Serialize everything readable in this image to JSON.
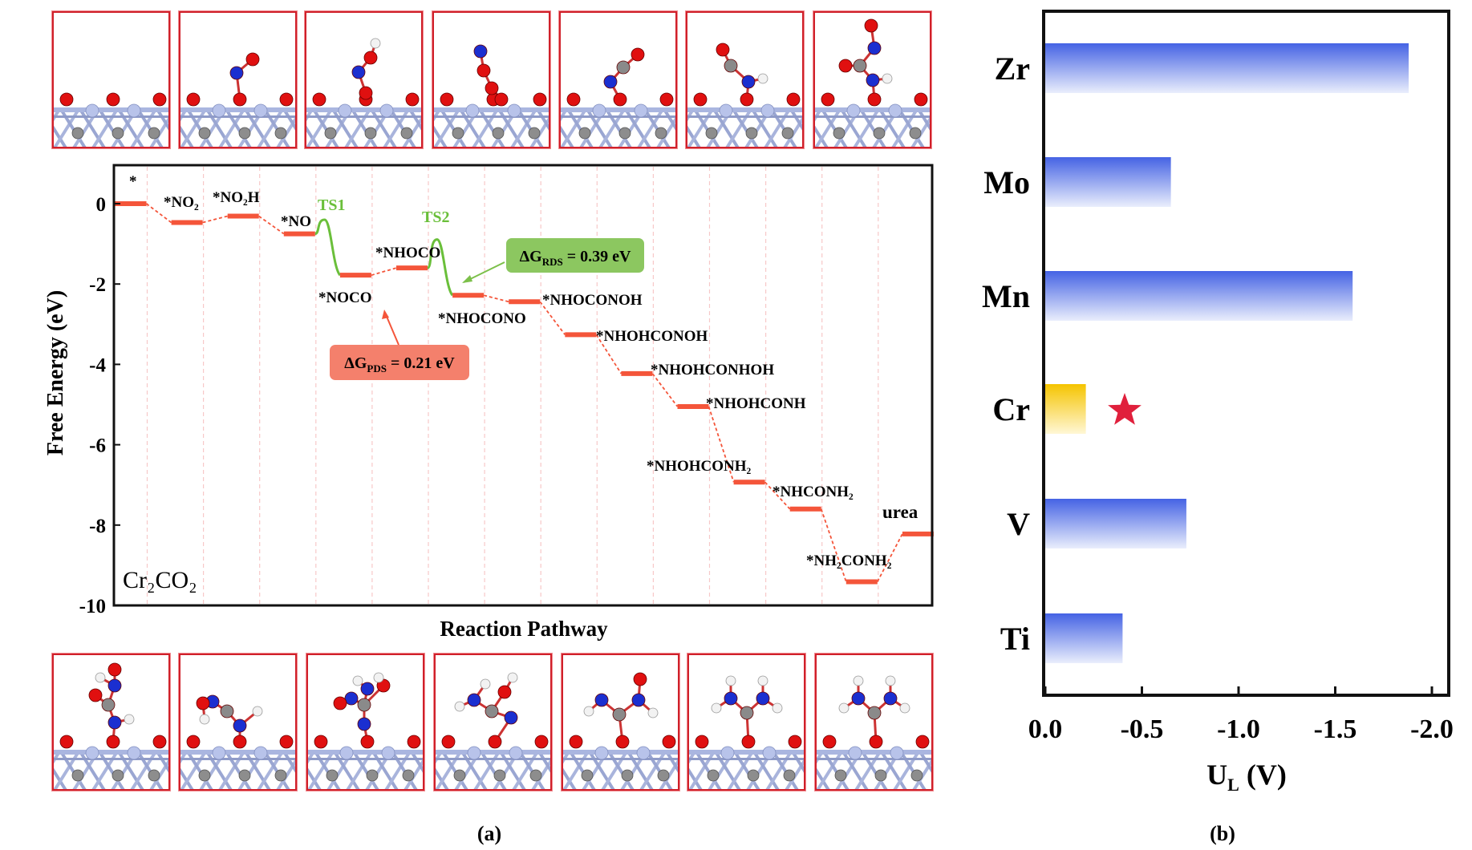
{
  "panel_labels": {
    "a": "(a)",
    "b": "(b)"
  },
  "chart_data": [
    {
      "type": "line",
      "title": "",
      "xlabel": "Reaction Pathway",
      "ylabel": "Free Energy (eV)",
      "ylim": [
        -10,
        1
      ],
      "yticks": [
        0,
        -2,
        -4,
        -6,
        -8,
        -10
      ],
      "ytick_labels": [
        "0",
        "-2",
        "-4",
        "-6",
        "-8",
        "-10"
      ],
      "material_label": "Cr₂CO₂",
      "steps": [
        {
          "name": "*",
          "energy": 0.0
        },
        {
          "name": "*NO₂",
          "energy": -0.47
        },
        {
          "name": "*NO₂H",
          "energy": -0.31
        },
        {
          "name": "*NO",
          "energy": -0.75
        },
        {
          "name": "*NOCO",
          "energy": -1.78
        },
        {
          "name": "*NHOCO",
          "energy": -1.6
        },
        {
          "name": "*NHOCONO",
          "energy": -2.28
        },
        {
          "name": "*NHOCONOH",
          "energy": -2.44
        },
        {
          "name": "*NHOHCONOH",
          "energy": -3.26
        },
        {
          "name": "*NHOHCONHOH",
          "energy": -4.23
        },
        {
          "name": "*NHOHCONH",
          "energy": -5.05
        },
        {
          "name": "*NHOHCONH₂",
          "energy": -6.93
        },
        {
          "name": "*NHCONH₂",
          "energy": -7.6
        },
        {
          "name": "*NH₂CONH₂",
          "energy": -9.41
        },
        {
          "name": "urea",
          "energy": -8.22
        }
      ],
      "transition_states": [
        {
          "name": "TS1",
          "energy": -0.4,
          "between": [
            "*NO",
            "*NOCO"
          ]
        },
        {
          "name": "TS2",
          "energy": -0.89,
          "between": [
            "*NHOCO",
            "*NHOCONO"
          ]
        }
      ],
      "annotations": [
        {
          "id": "rds",
          "prefix": "ΔG",
          "sub": "RDS",
          "suffix": " = 0.39 eV",
          "color": "#8cc760"
        },
        {
          "id": "pds",
          "prefix": "ΔG",
          "sub": "PDS",
          "suffix": " = 0.21 eV",
          "color": "#f4806c"
        }
      ],
      "colors": {
        "level": "#f4553a",
        "connector": "#f4553a",
        "ts": "#6abf3a",
        "grid": "#f7c8c8"
      }
    },
    {
      "type": "bar",
      "orientation": "horizontal",
      "title": "",
      "xlabel": "U",
      "xlabel_sub": "L",
      "xlabel_unit": " (V)",
      "ylabel": "",
      "xlim": [
        0.0,
        -2.1
      ],
      "xticks": [
        0.0,
        -0.5,
        -1.0,
        -1.5,
        -2.0
      ],
      "xtick_labels": [
        "0.0",
        "-0.5",
        "-1.0",
        "-1.5",
        "-2.0"
      ],
      "categories": [
        "Zr",
        "Mo",
        "Mn",
        "Cr",
        "V",
        "Ti"
      ],
      "values": [
        -1.88,
        -0.65,
        -1.59,
        -0.21,
        -0.73,
        -0.4
      ],
      "highlight": "Cr",
      "marker": "star-icon",
      "colors": {
        "bar": "#4a66e6",
        "highlight": "#f5c400",
        "star": "#e0203c"
      }
    }
  ],
  "structures": {
    "top": [
      "*",
      "*NO2",
      "*NO2H",
      "*NOCO",
      "*NHOCO",
      "*NHOCONO",
      "*NHOCONOH"
    ],
    "bottom": [
      "*NHOHCONOH",
      "*NHOHCONHOH",
      "*NHOHCONH",
      "*NHOHCONH2",
      "*NHCONH2",
      "*NH2CONH2",
      "urea"
    ]
  }
}
